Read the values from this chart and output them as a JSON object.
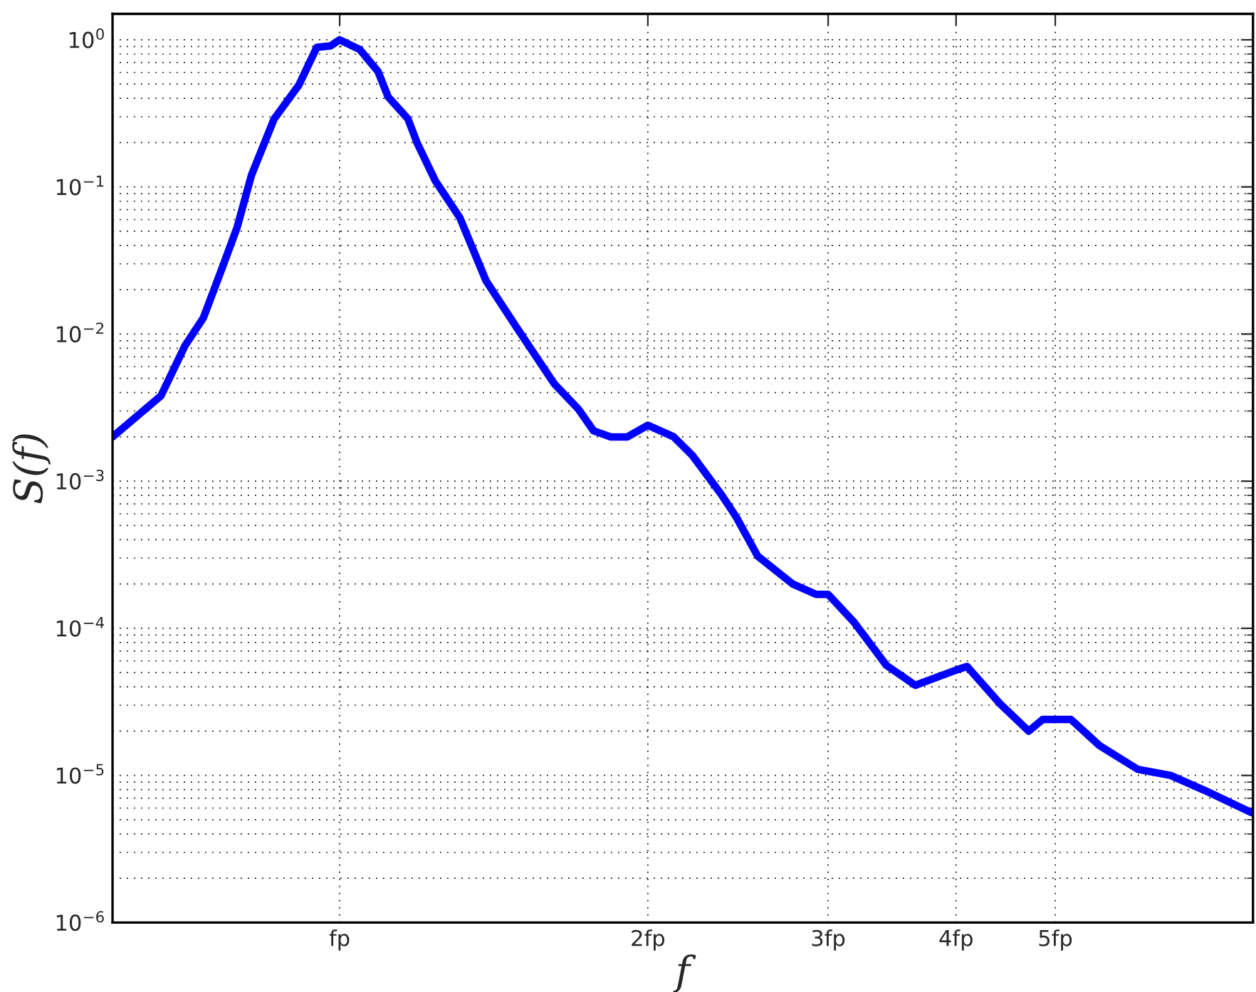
{
  "chart_data": {
    "type": "line",
    "xlabel": "f",
    "ylabel": "S(f)",
    "log": "xy",
    "grid": true,
    "marker": "none",
    "line_style": "solid",
    "xlim": [
      0.6,
      7.8
    ],
    "ylim": [
      1e-06,
      1.5
    ],
    "xticks": [
      {
        "value": 1,
        "label": "fp"
      },
      {
        "value": 2,
        "label": "2fp"
      },
      {
        "value": 3,
        "label": "3fp"
      },
      {
        "value": 4,
        "label": "4fp"
      },
      {
        "value": 5,
        "label": "5fp"
      }
    ],
    "yticks": [
      {
        "value": 1e-06,
        "label": "10$^{−6}$"
      },
      {
        "value": 1e-05,
        "label": "10$^{−5}$"
      },
      {
        "value": 0.0001,
        "label": "10$^{−4}$"
      },
      {
        "value": 0.001,
        "label": "10$^{−3}$"
      },
      {
        "value": 0.01,
        "label": "10$^{−2}$"
      },
      {
        "value": 0.1,
        "label": "10$^{−1}$"
      },
      {
        "value": 1,
        "label": "10$^{0}$"
      }
    ],
    "series": [
      {
        "color": "#0000ff",
        "x": [
          0.6,
          0.669,
          0.706,
          0.736,
          0.769,
          0.794,
          0.82,
          0.863,
          0.912,
          0.95,
          0.98,
          1.0,
          1.046,
          1.09,
          1.115,
          1.166,
          1.19,
          1.24,
          1.31,
          1.39,
          1.49,
          1.62,
          1.71,
          1.77,
          1.84,
          1.91,
          2.0,
          2.12,
          2.21,
          2.36,
          2.44,
          2.56,
          2.77,
          2.92,
          3.0,
          3.18,
          3.42,
          3.65,
          4.0,
          4.1,
          4.41,
          4.71,
          4.86,
          5.18,
          5.52,
          6.02,
          6.48,
          7.0,
          7.77
        ],
        "values": [
          0.002,
          0.0038,
          0.0083,
          0.0129,
          0.029,
          0.053,
          0.12,
          0.29,
          0.49,
          0.89,
          0.91,
          1.0,
          0.86,
          0.61,
          0.41,
          0.29,
          0.2,
          0.11,
          0.062,
          0.023,
          0.011,
          0.0046,
          0.0031,
          0.0022,
          0.002,
          0.002,
          0.0024,
          0.002,
          0.0015,
          0.00081,
          0.00057,
          0.00031,
          0.0002,
          0.00017,
          0.00017,
          0.00011,
          5.6e-05,
          4.1e-05,
          5.2e-05,
          5.5e-05,
          3.1e-05,
          2e-05,
          2.4e-05,
          2.4e-05,
          1.6e-05,
          1.1e-05,
          1e-05,
          7.9e-06,
          5.6e-06
        ]
      }
    ]
  }
}
